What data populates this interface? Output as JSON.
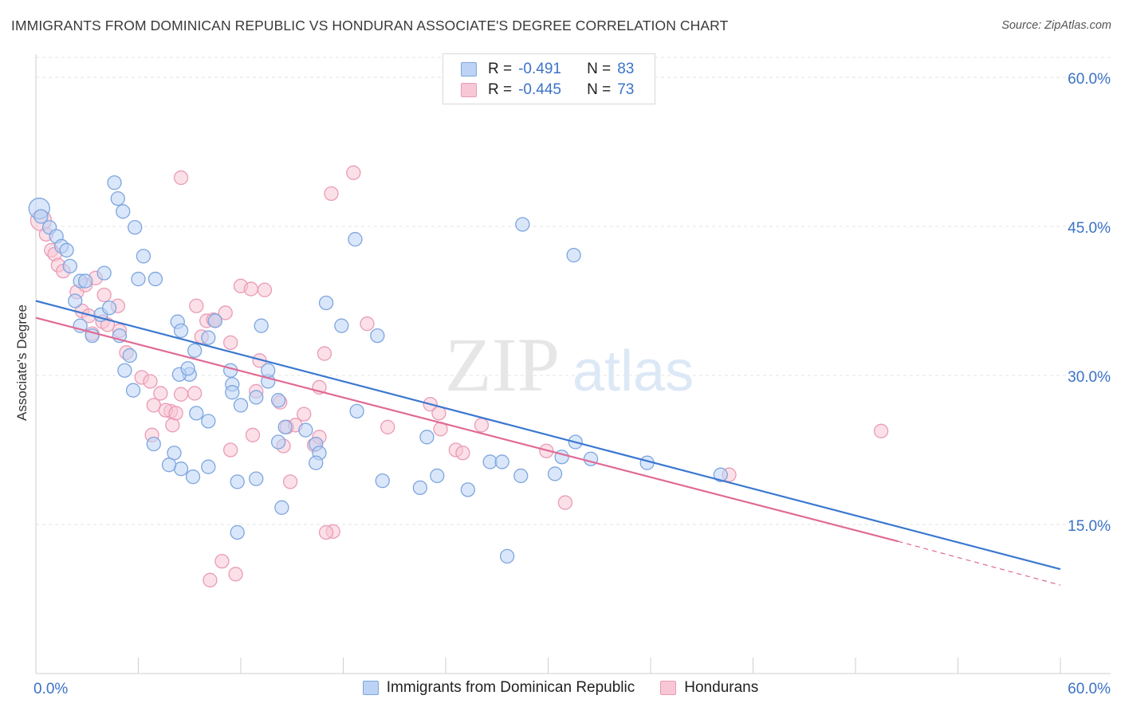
{
  "title": "IMMIGRANTS FROM DOMINICAN REPUBLIC VS HONDURAN ASSOCIATE'S DEGREE CORRELATION CHART",
  "source": "Source: ZipAtlas.com",
  "watermark": {
    "zip": "ZIP",
    "atlas": "atlas"
  },
  "legend": {
    "r_label": "R =",
    "n_label": "N =",
    "series": [
      {
        "r": "-0.491",
        "n": "83"
      },
      {
        "r": "-0.445",
        "n": "73"
      }
    ]
  },
  "bottom_legend": [
    "Immigrants from Dominican Republic",
    "Hondurans"
  ],
  "colors": {
    "blue": "#3b78d0",
    "pink": "#e06a95",
    "blue_fill": "#bcd3f5",
    "pink_fill": "#f8c7d6",
    "text_blue": "#3b73c7"
  },
  "chart_data": {
    "type": "scatter",
    "title": "IMMIGRANTS FROM DOMINICAN REPUBLIC VS HONDURAN ASSOCIATE'S DEGREE CORRELATION CHART",
    "xlabel": "",
    "ylabel": "Associate's Degree",
    "xlim": [
      0,
      60
    ],
    "ylim": [
      0,
      62
    ],
    "x_tick_labels": [
      "0.0%",
      "60.0%"
    ],
    "y_tick_labels": [
      "15.0%",
      "30.0%",
      "45.0%",
      "60.0%"
    ],
    "y_ticks": [
      15,
      30,
      45,
      60
    ],
    "grid": true,
    "legend_position": "top-center",
    "series": [
      {
        "name": "Immigrants from Dominican Republic",
        "color": "#3b78d0",
        "trend": {
          "x": [
            0,
            60
          ],
          "y": [
            37.5,
            10.5
          ]
        },
        "points": [
          [
            0.2,
            46.8
          ],
          [
            0.3,
            46.0
          ],
          [
            0.8,
            44.9
          ],
          [
            1.2,
            44.0
          ],
          [
            1.5,
            43.0
          ],
          [
            1.8,
            42.6
          ],
          [
            2.0,
            41.0
          ],
          [
            2.6,
            39.5
          ],
          [
            2.9,
            39.5
          ],
          [
            4.0,
            40.3
          ],
          [
            2.3,
            37.5
          ],
          [
            3.8,
            36.1
          ],
          [
            2.6,
            35.0
          ],
          [
            3.3,
            34.0
          ],
          [
            4.3,
            36.8
          ],
          [
            4.9,
            34.0
          ],
          [
            5.2,
            30.5
          ],
          [
            5.7,
            28.5
          ],
          [
            5.5,
            32.0
          ],
          [
            4.6,
            49.4
          ],
          [
            4.8,
            47.8
          ],
          [
            5.1,
            46.5
          ],
          [
            5.8,
            44.9
          ],
          [
            6.3,
            42.0
          ],
          [
            6.0,
            39.7
          ],
          [
            7.0,
            39.7
          ],
          [
            8.3,
            35.4
          ],
          [
            8.5,
            34.5
          ],
          [
            9.3,
            32.5
          ],
          [
            9.0,
            30.1
          ],
          [
            8.4,
            30.1
          ],
          [
            8.9,
            30.7
          ],
          [
            10.1,
            33.8
          ],
          [
            10.5,
            35.5
          ],
          [
            11.4,
            30.5
          ],
          [
            11.5,
            29.1
          ],
          [
            11.5,
            28.3
          ],
          [
            12.0,
            27.0
          ],
          [
            13.2,
            35.0
          ],
          [
            13.6,
            29.4
          ],
          [
            13.6,
            30.5
          ],
          [
            14.2,
            27.5
          ],
          [
            14.6,
            24.8
          ],
          [
            12.9,
            27.8
          ],
          [
            10.1,
            25.4
          ],
          [
            10.1,
            20.8
          ],
          [
            9.4,
            26.2
          ],
          [
            8.1,
            22.2
          ],
          [
            8.5,
            20.6
          ],
          [
            7.8,
            21.0
          ],
          [
            6.9,
            23.1
          ],
          [
            9.2,
            19.8
          ],
          [
            11.8,
            19.3
          ],
          [
            12.9,
            19.6
          ],
          [
            14.4,
            16.7
          ],
          [
            11.8,
            14.2
          ],
          [
            17.0,
            37.3
          ],
          [
            17.9,
            35.0
          ],
          [
            18.7,
            43.7
          ],
          [
            20.0,
            34.0
          ],
          [
            18.8,
            26.4
          ],
          [
            14.2,
            23.3
          ],
          [
            15.8,
            24.5
          ],
          [
            16.4,
            23.1
          ],
          [
            16.6,
            22.2
          ],
          [
            16.4,
            21.2
          ],
          [
            20.3,
            19.4
          ],
          [
            22.9,
            23.8
          ],
          [
            23.5,
            19.9
          ],
          [
            22.5,
            18.7
          ],
          [
            25.3,
            18.5
          ],
          [
            26.6,
            21.3
          ],
          [
            27.3,
            21.3
          ],
          [
            27.6,
            11.8
          ],
          [
            28.4,
            19.9
          ],
          [
            30.4,
            20.1
          ],
          [
            30.8,
            21.8
          ],
          [
            31.6,
            23.3
          ],
          [
            32.5,
            21.6
          ],
          [
            28.5,
            45.2
          ],
          [
            31.5,
            42.1
          ],
          [
            35.8,
            21.2
          ],
          [
            40.1,
            20.0
          ]
        ]
      },
      {
        "name": "Hondurans",
        "color": "#e06a95",
        "trend": {
          "x": [
            0,
            50.5
          ],
          "y": [
            35.8,
            13.3
          ],
          "dash_x": [
            50.5,
            60
          ],
          "dash_y": [
            13.3,
            8.9
          ]
        },
        "points": [
          [
            0.3,
            45.6
          ],
          [
            0.6,
            44.2
          ],
          [
            0.9,
            42.6
          ],
          [
            1.1,
            42.2
          ],
          [
            1.3,
            41.1
          ],
          [
            1.6,
            40.5
          ],
          [
            2.4,
            38.4
          ],
          [
            2.9,
            39.1
          ],
          [
            3.5,
            39.8
          ],
          [
            4.0,
            38.1
          ],
          [
            2.7,
            36.5
          ],
          [
            3.1,
            36.0
          ],
          [
            3.3,
            34.2
          ],
          [
            3.9,
            35.4
          ],
          [
            4.2,
            35.1
          ],
          [
            4.8,
            37.0
          ],
          [
            4.9,
            34.5
          ],
          [
            5.3,
            32.3
          ],
          [
            6.2,
            29.8
          ],
          [
            6.7,
            29.4
          ],
          [
            6.9,
            27.0
          ],
          [
            6.8,
            24.0
          ],
          [
            7.3,
            28.2
          ],
          [
            7.9,
            26.4
          ],
          [
            8.0,
            25.0
          ],
          [
            8.5,
            28.1
          ],
          [
            7.6,
            26.5
          ],
          [
            8.2,
            26.2
          ],
          [
            9.3,
            28.2
          ],
          [
            10.0,
            35.5
          ],
          [
            10.4,
            35.6
          ],
          [
            10.5,
            35.5
          ],
          [
            9.7,
            33.9
          ],
          [
            9.4,
            37.0
          ],
          [
            11.4,
            33.3
          ],
          [
            11.4,
            22.5
          ],
          [
            12.7,
            24.0
          ],
          [
            12.9,
            28.4
          ],
          [
            13.1,
            31.5
          ],
          [
            13.4,
            38.6
          ],
          [
            14.3,
            27.3
          ],
          [
            14.7,
            24.8
          ],
          [
            15.2,
            25.0
          ],
          [
            14.5,
            22.9
          ],
          [
            14.9,
            19.3
          ],
          [
            15.7,
            26.1
          ],
          [
            16.3,
            23.0
          ],
          [
            16.6,
            23.8
          ],
          [
            16.6,
            28.8
          ],
          [
            16.9,
            32.2
          ],
          [
            17.3,
            48.3
          ],
          [
            17.4,
            14.3
          ],
          [
            17.0,
            14.2
          ],
          [
            18.6,
            50.4
          ],
          [
            19.4,
            35.2
          ],
          [
            20.6,
            24.8
          ],
          [
            23.1,
            27.1
          ],
          [
            23.6,
            26.2
          ],
          [
            23.7,
            24.6
          ],
          [
            24.6,
            22.5
          ],
          [
            25.0,
            22.2
          ],
          [
            26.1,
            25.0
          ],
          [
            29.9,
            22.4
          ],
          [
            31.0,
            17.2
          ],
          [
            40.6,
            20.0
          ],
          [
            49.5,
            24.4
          ],
          [
            8.5,
            49.9
          ],
          [
            10.9,
            11.3
          ],
          [
            11.7,
            10.0
          ],
          [
            10.2,
            9.4
          ],
          [
            12.0,
            39.0
          ],
          [
            12.6,
            38.7
          ],
          [
            11.1,
            36.3
          ]
        ]
      }
    ]
  }
}
